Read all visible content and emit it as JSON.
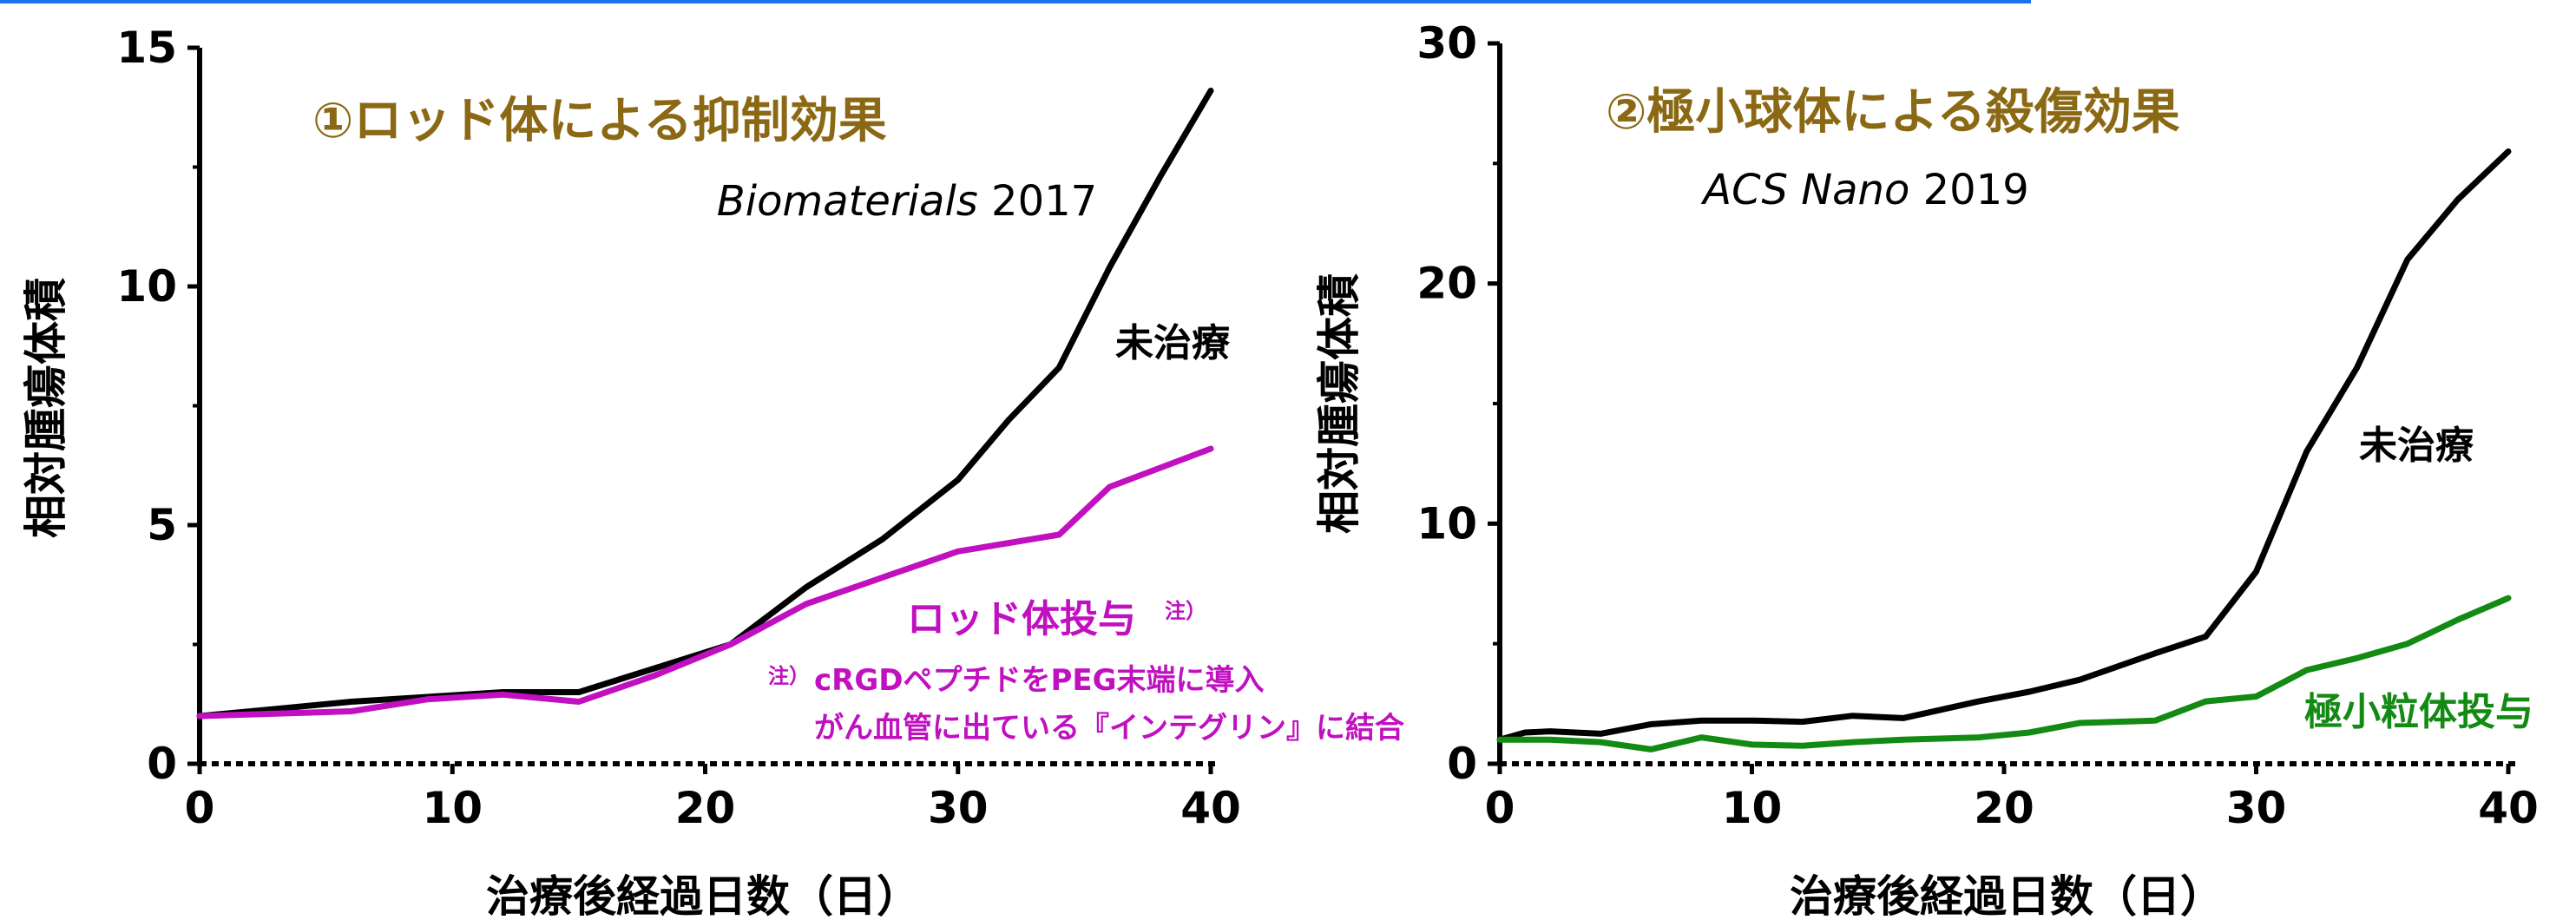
{
  "colors": {
    "top_rule": "#1a73e8"
  },
  "chart_data": [
    {
      "type": "line",
      "title": "①ロッド体による抑制効果",
      "citation_italic": "Biomaterials",
      "citation_year": "2017",
      "title_color": "#8b6914",
      "xlabel": "治療後経過日数（日）",
      "ylabel": "相対腫瘍体積",
      "xlim": [
        0,
        40
      ],
      "ylim": [
        0,
        15
      ],
      "xticks": [
        0,
        10,
        20,
        30,
        40
      ],
      "yticks": [
        0,
        5,
        10,
        15
      ],
      "grid": false,
      "series": [
        {
          "name": "未治療",
          "color": "#000000",
          "x": [
            0,
            3,
            6,
            9,
            12,
            15,
            18,
            21,
            24,
            27,
            30,
            32,
            34,
            36,
            38,
            40
          ],
          "y": [
            1.0,
            1.15,
            1.3,
            1.4,
            1.5,
            1.5,
            2.0,
            2.5,
            3.7,
            4.7,
            5.95,
            7.2,
            8.3,
            10.4,
            12.3,
            14.1
          ]
        },
        {
          "name": "ロッド体投与",
          "color": "#c010c0",
          "x": [
            0,
            3,
            6,
            9,
            12,
            15,
            18,
            21,
            24,
            27,
            30,
            34,
            36,
            38,
            40
          ],
          "y": [
            1.0,
            1.05,
            1.1,
            1.35,
            1.45,
            1.3,
            1.85,
            2.5,
            3.35,
            3.9,
            4.45,
            4.8,
            5.8,
            6.2,
            6.6
          ]
        }
      ],
      "annotation": {
        "mark": "注）",
        "lines": [
          "cRGDペプチドをPEG末端に導入",
          "がん血管に出ている『インテグリン』に結合"
        ],
        "color": "#c010c0"
      }
    },
    {
      "type": "line",
      "title": "②極小球体による殺傷効果",
      "citation_italic": "ACS Nano",
      "citation_year": "2019",
      "title_color": "#8b6914",
      "xlabel": "治療後経過日数（日）",
      "ylabel": "相対腫瘍体積",
      "xlim": [
        0,
        40
      ],
      "ylim": [
        0,
        30
      ],
      "xticks": [
        0,
        10,
        20,
        30,
        40
      ],
      "yticks": [
        0,
        10,
        20,
        30
      ],
      "grid": false,
      "series": [
        {
          "name": "未治療",
          "color": "#000000",
          "x": [
            0,
            1,
            2,
            4,
            6,
            8,
            10,
            12,
            14,
            16,
            19,
            21,
            23,
            26,
            28,
            30,
            32,
            34,
            36,
            38,
            40
          ],
          "y": [
            1.0,
            1.3,
            1.35,
            1.25,
            1.65,
            1.8,
            1.8,
            1.75,
            2.0,
            1.9,
            2.6,
            3.0,
            3.5,
            4.6,
            5.3,
            8.0,
            13.0,
            16.5,
            21.0,
            23.5,
            25.5
          ]
        },
        {
          "name": "極小粒体投与",
          "color": "#138a13",
          "x": [
            0,
            2,
            4,
            6,
            8,
            10,
            12,
            14,
            16,
            19,
            21,
            23,
            26,
            28,
            30,
            32,
            34,
            36,
            38,
            40
          ],
          "y": [
            1.0,
            1.0,
            0.9,
            0.6,
            1.1,
            0.8,
            0.75,
            0.9,
            1.0,
            1.1,
            1.3,
            1.7,
            1.8,
            2.6,
            2.8,
            3.9,
            4.4,
            5.0,
            6.0,
            6.9
          ]
        }
      ]
    }
  ]
}
